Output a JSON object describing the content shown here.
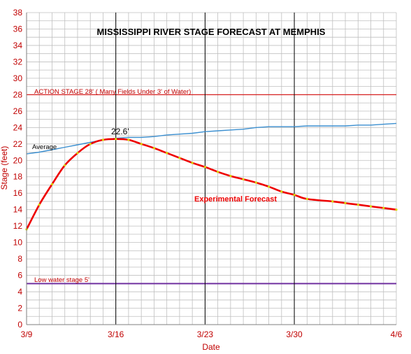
{
  "colors": {
    "axis_text": "#c00000",
    "grid": "#bfbfbf",
    "forecast": "#ee0000",
    "forecast_marker": "#d8d800",
    "average": "#3b8fd0",
    "action_line": "#d62020",
    "low_line": "#7030a0",
    "vertical_marks": "#000000"
  },
  "chart_data": {
    "type": "line",
    "title": "MISSISSIPPI RIVER  STAGE FORECAST AT MEMPHIS",
    "xlabel": "Date",
    "ylabel": "Stage (feet)",
    "ylim": [
      0,
      38
    ],
    "yticks": [
      0,
      2,
      4,
      6,
      8,
      10,
      12,
      14,
      16,
      18,
      20,
      22,
      24,
      26,
      28,
      30,
      32,
      34,
      36,
      38
    ],
    "xlim": [
      "3/9",
      "4/6"
    ],
    "x_tick_dates": [
      "3/9",
      "3/16",
      "3/23",
      "3/30",
      "4/6"
    ],
    "vertical_lines_at": [
      "3/16",
      "3/23",
      "3/30"
    ],
    "grid": true,
    "legend": "none",
    "series": [
      {
        "name": "Average",
        "x": [
          "3/9",
          "3/10",
          "3/11",
          "3/12",
          "3/13",
          "3/14",
          "3/15",
          "3/16",
          "3/17",
          "3/18",
          "3/19",
          "3/20",
          "3/21",
          "3/22",
          "3/23",
          "3/24",
          "3/25",
          "3/26",
          "3/27",
          "3/28",
          "3/29",
          "3/30",
          "3/31",
          "4/1",
          "4/2",
          "4/3",
          "4/4",
          "4/5",
          "4/6"
        ],
        "values": [
          20.8,
          21.0,
          21.3,
          21.6,
          21.9,
          22.2,
          22.5,
          22.7,
          22.8,
          22.8,
          22.9,
          23.1,
          23.2,
          23.3,
          23.5,
          23.6,
          23.7,
          23.8,
          24.0,
          24.1,
          24.1,
          24.1,
          24.2,
          24.2,
          24.2,
          24.3,
          24.3,
          24.4,
          24.5
        ]
      },
      {
        "name": "Experimental Forecast",
        "x": [
          "3/9",
          "3/10",
          "3/11",
          "3/12",
          "3/13",
          "3/14",
          "3/15",
          "3/16",
          "3/17",
          "3/18",
          "3/19",
          "3/20",
          "3/21",
          "3/22",
          "3/23",
          "3/24",
          "3/25",
          "3/26",
          "3/27",
          "3/28",
          "3/29",
          "3/30",
          "3/31",
          "4/1",
          "4/2",
          "4/3",
          "4/4",
          "4/5",
          "4/6"
        ],
        "values": [
          11.6,
          14.6,
          17.1,
          19.4,
          20.9,
          22.0,
          22.5,
          22.6,
          22.5,
          22.0,
          21.5,
          20.9,
          20.3,
          19.7,
          19.2,
          18.6,
          18.1,
          17.7,
          17.3,
          16.8,
          16.2,
          15.8,
          15.3,
          15.0,
          14.8,
          14.6,
          14.4,
          14.2,
          14.0
        ]
      }
    ],
    "reference_lines": [
      {
        "label": "ACTION STAGE 28'  ( Many Fields Under 3' of Water)",
        "value": 28
      },
      {
        "label": "Low water stage 5'",
        "value": 5
      }
    ],
    "annotations": {
      "average_label": "Average",
      "forecast_label": "Experimental Forecast",
      "peak_label": "22.6'",
      "peak_date": "3/16",
      "peak_value": 22.6
    }
  }
}
